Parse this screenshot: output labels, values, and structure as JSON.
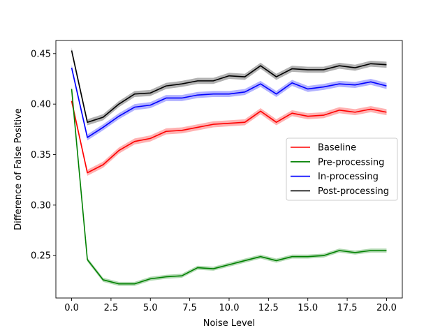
{
  "chart_data": {
    "type": "line",
    "title": "",
    "xlabel": "Noise Level",
    "ylabel": "Difference of False Positive",
    "xlim": [
      -1.0,
      21.0
    ],
    "ylim": [
      0.208,
      0.463
    ],
    "xticks": [
      0.0,
      2.5,
      5.0,
      7.5,
      10.0,
      12.5,
      15.0,
      17.5,
      20.0
    ],
    "xtick_labels": [
      "0.0",
      "2.5",
      "5.0",
      "7.5",
      "10.0",
      "12.5",
      "15.0",
      "17.5",
      "20.0"
    ],
    "yticks": [
      0.25,
      0.3,
      0.35,
      0.4,
      0.45
    ],
    "ytick_labels": [
      "0.25",
      "0.30",
      "0.35",
      "0.40",
      "0.45"
    ],
    "grid": false,
    "legend_position": "center-right",
    "x": [
      0,
      1,
      2,
      3,
      4,
      5,
      6,
      7,
      8,
      9,
      10,
      11,
      12,
      13,
      14,
      15,
      16,
      17,
      18,
      19,
      20
    ],
    "series": [
      {
        "name": "Baseline",
        "color": "#ff0000",
        "values": [
          0.403,
          0.332,
          0.34,
          0.354,
          0.363,
          0.366,
          0.373,
          0.374,
          0.377,
          0.38,
          0.381,
          0.382,
          0.393,
          0.382,
          0.391,
          0.388,
          0.389,
          0.394,
          0.392,
          0.395,
          0.392
        ],
        "band": 0.003
      },
      {
        "name": "Pre-processing",
        "color": "#008000",
        "values": [
          0.415,
          0.246,
          0.226,
          0.222,
          0.222,
          0.227,
          0.229,
          0.23,
          0.238,
          0.237,
          0.241,
          0.245,
          0.249,
          0.245,
          0.249,
          0.249,
          0.25,
          0.255,
          0.253,
          0.255,
          0.255
        ],
        "band": 0.002
      },
      {
        "name": "In-processing",
        "color": "#0000ff",
        "values": [
          0.436,
          0.367,
          0.377,
          0.388,
          0.397,
          0.399,
          0.406,
          0.406,
          0.409,
          0.41,
          0.41,
          0.412,
          0.42,
          0.41,
          0.421,
          0.415,
          0.417,
          0.42,
          0.419,
          0.422,
          0.418
        ],
        "band": 0.003
      },
      {
        "name": "Post-processing",
        "color": "#000000",
        "values": [
          0.453,
          0.382,
          0.387,
          0.4,
          0.41,
          0.411,
          0.418,
          0.42,
          0.423,
          0.423,
          0.428,
          0.427,
          0.438,
          0.427,
          0.435,
          0.434,
          0.434,
          0.438,
          0.436,
          0.44,
          0.439
        ],
        "band": 0.003
      }
    ]
  }
}
